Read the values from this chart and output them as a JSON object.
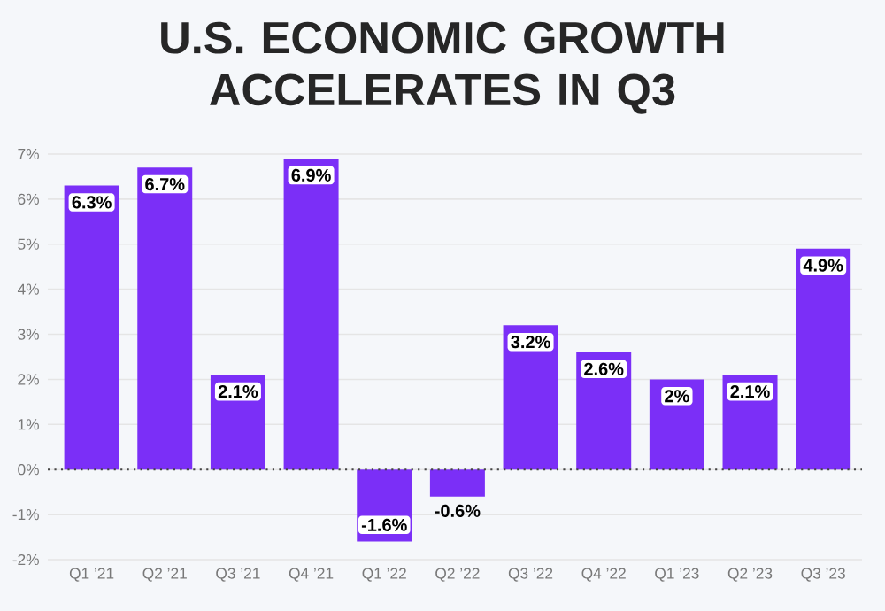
{
  "chart_data": {
    "type": "bar",
    "title": "U.S. ECONOMIC GROWTH ACCELERATES IN Q3",
    "categories": [
      "Q1 ’21",
      "Q2 ’21",
      "Q3 ’21",
      "Q4 ’21",
      "Q1 ’22",
      "Q2 ’22",
      "Q3 ’22",
      "Q4 ’22",
      "Q1 ’23",
      "Q2 ’23",
      "Q3 ’23"
    ],
    "values": [
      6.3,
      6.7,
      2.1,
      6.9,
      -1.6,
      -0.6,
      3.2,
      2.6,
      2,
      2.1,
      4.9
    ],
    "value_labels": [
      "6.3%",
      "6.7%",
      "2.1%",
      "6.9%",
      "-1.6%",
      "-0.6%",
      "3.2%",
      "2.6%",
      "2%",
      "2.1%",
      "4.9%"
    ],
    "color": "#7b2ff7",
    "ylim": [
      -2,
      7
    ],
    "yticks": [
      {
        "value": -2,
        "label": "-2%"
      },
      {
        "value": -1,
        "label": "-1%"
      },
      {
        "value": 0,
        "label": "0%"
      },
      {
        "value": 1,
        "label": "1%"
      },
      {
        "value": 2,
        "label": "2%"
      },
      {
        "value": 3,
        "label": "3%"
      },
      {
        "value": 4,
        "label": "4%"
      },
      {
        "value": 5,
        "label": "5%"
      },
      {
        "value": 6,
        "label": "6%"
      },
      {
        "value": 7,
        "label": "7%"
      }
    ],
    "grid": "y",
    "ref_lines": [
      {
        "axis": "y",
        "value": 0,
        "line_style": "dotted",
        "color": "#444444"
      }
    ]
  }
}
